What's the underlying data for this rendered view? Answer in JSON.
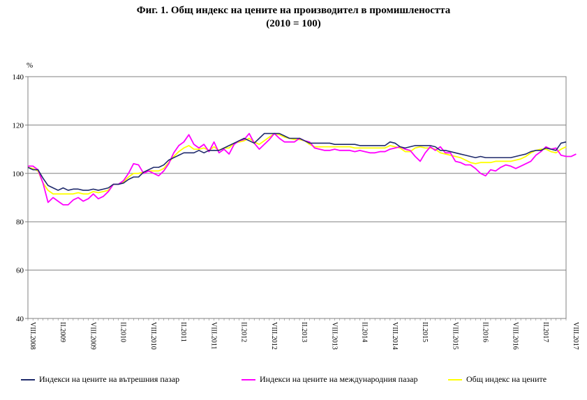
{
  "chart_data": {
    "type": "line",
    "title": "Фиг. 1. Общ индекс на цените на производител в промишлеността",
    "subtitle": "(2010 = 100)",
    "ylabel": "%",
    "xlabel": "",
    "ylim": [
      40,
      140
    ],
    "yticks": [
      40,
      60,
      80,
      100,
      120,
      140
    ],
    "grid": true,
    "legend_position": "bottom",
    "x_start": "VIII.2008",
    "x_end": "VIII.2017",
    "x_tick_labels": [
      "VIII.2008",
      "II.2009",
      "VIII.2009",
      "II.2010",
      "VIII.2010",
      "II.2011",
      "VIII.2011",
      "II.2012",
      "VIII.2012",
      "II.2013",
      "VIII.2013",
      "II.2014",
      "VIII.2014",
      "II.2015",
      "VIII.2015",
      "II.2016",
      "VIII.2016",
      "II.2017",
      "VIII.2017"
    ],
    "series": [
      {
        "name": "Индекси на цените на вътрешния пазар",
        "color": "#1f2a6b",
        "values": [
          102.5,
          101.5,
          101.5,
          98,
          95,
          94,
          93,
          94,
          93,
          93.5,
          93.5,
          93,
          93,
          93.5,
          93,
          93.5,
          94,
          95.5,
          95.5,
          96,
          97.5,
          98.5,
          98.5,
          100.5,
          101.5,
          102.5,
          102.5,
          103.5,
          105.5,
          106.5,
          107.5,
          108.5,
          108.5,
          108.5,
          109.5,
          108.5,
          109.5,
          109.5,
          109.5,
          110.5,
          111.5,
          112.5,
          113.5,
          114.5,
          113.5,
          112.5,
          114.5,
          116.5,
          116.5,
          116.5,
          116.5,
          115.5,
          114.5,
          114.5,
          114.5,
          113.5,
          112.5,
          112.5,
          112.5,
          112.5,
          112.5,
          112,
          112,
          112,
          112,
          112,
          111.5,
          111.5,
          111.5,
          111.5,
          111.5,
          111.5,
          113,
          112.5,
          111,
          110.5,
          111,
          111.5,
          111.5,
          111.5,
          111.5,
          111,
          109.5,
          109.5,
          109,
          108.5,
          108,
          107.5,
          107,
          106.5,
          107,
          106.5,
          106.5,
          106.5,
          106.5,
          106.5,
          106.5,
          107,
          107.5,
          108,
          109,
          109.5,
          109.5,
          110.5,
          110,
          109.5,
          112.5,
          113
        ]
      },
      {
        "name": "Индекси на цените на международния пазар",
        "color": "#ff00ff",
        "values": [
          103,
          103,
          101.5,
          96,
          88,
          90,
          88.5,
          87,
          87,
          89,
          90,
          88.5,
          89.5,
          91.5,
          89.5,
          90.5,
          92.5,
          95.5,
          95.5,
          97,
          100,
          104,
          103.5,
          100,
          101,
          100,
          99,
          101,
          104,
          108.5,
          111.5,
          113,
          116,
          112,
          110.5,
          112,
          109,
          113,
          108.5,
          110,
          108,
          112,
          113.5,
          114,
          116.5,
          112.5,
          110,
          112,
          114,
          116.5,
          114.5,
          113,
          113,
          113,
          114.5,
          113.5,
          113,
          110.5,
          110,
          109.5,
          109.5,
          110,
          109.5,
          109.5,
          109.5,
          109,
          109.5,
          109,
          108.5,
          108.5,
          109,
          109,
          110,
          110.5,
          111,
          110,
          109.5,
          107,
          105,
          108.5,
          111,
          109.5,
          111,
          108.5,
          108.5,
          105,
          104.5,
          103.5,
          103.5,
          102,
          100,
          99,
          101.5,
          101,
          102.5,
          103.5,
          103,
          102,
          103,
          104,
          105,
          107.5,
          109,
          111,
          110,
          110.5,
          107.5,
          107,
          107,
          108
        ]
      },
      {
        "name": "Общ индекс на цените",
        "color": "#ffff00",
        "values": [
          102.5,
          102,
          101,
          96,
          93,
          91.5,
          91.5,
          91.5,
          91.5,
          91.5,
          92,
          91.5,
          91.5,
          92.5,
          92,
          92.5,
          93,
          95.5,
          95.5,
          96.5,
          98.5,
          100,
          100,
          100.5,
          101,
          101,
          101,
          102,
          104.5,
          107,
          109,
          110.5,
          111.5,
          110,
          110,
          110.5,
          109.5,
          111,
          109.5,
          110.5,
          110.5,
          112.5,
          113,
          113.5,
          114.5,
          113,
          112,
          113.5,
          115,
          116.5,
          116,
          115,
          114.5,
          114,
          114,
          113.5,
          112,
          111,
          111,
          111,
          111,
          111,
          111,
          111,
          111,
          110.5,
          110.5,
          110.5,
          110.5,
          110.5,
          110.5,
          110.5,
          111.5,
          111,
          110.5,
          109,
          109,
          110.5,
          111,
          110.5,
          110.5,
          110,
          108.5,
          108,
          107.5,
          107,
          106.5,
          105.5,
          104.5,
          104,
          104.5,
          104.5,
          104.5,
          105,
          105,
          105,
          105,
          105.5,
          106,
          107,
          108.5,
          109.5,
          110,
          110,
          109,
          108.5,
          110,
          111
        ]
      }
    ]
  }
}
